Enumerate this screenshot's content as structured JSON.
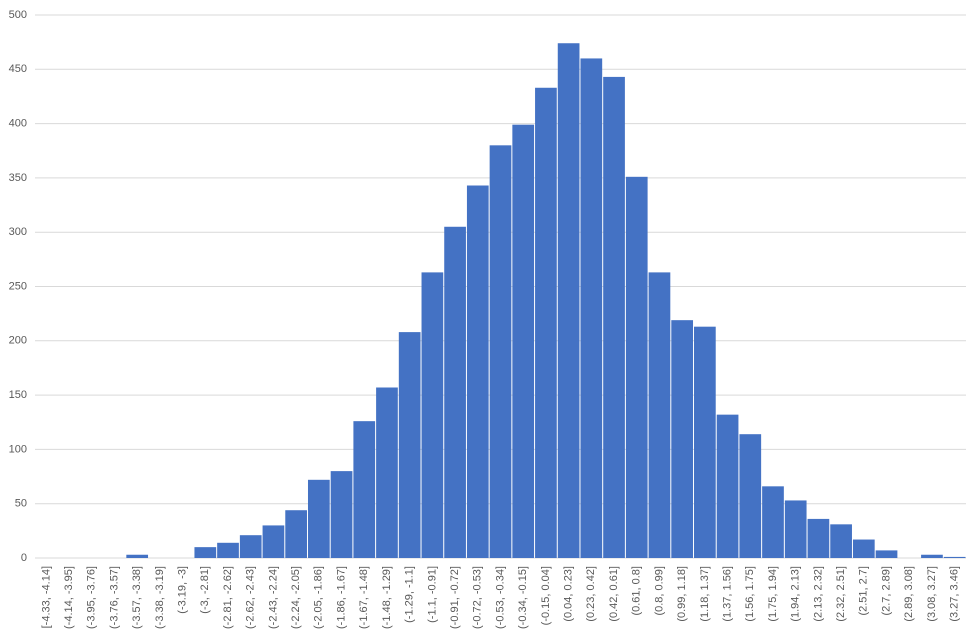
{
  "chart_data": {
    "type": "bar",
    "categories": [
      "[-4.33, -4.14]",
      "(-4.14, -3.95]",
      "(-3.95, -3.76]",
      "(-3.76, -3.57]",
      "(-3.57, -3.38]",
      "(-3.38, -3.19]",
      "(-3.19, -3]",
      "(-3, -2.81]",
      "(-2.81, -2.62]",
      "(-2.62, -2.43]",
      "(-2.43, -2.24]",
      "(-2.24, -2.05]",
      "(-2.05, -1.86]",
      "(-1.86, -1.67]",
      "(-1.67, -1.48]",
      "(-1.48, -1.29]",
      "(-1.29, -1.1]",
      "(-1.1, -0.91]",
      "(-0.91, -0.72]",
      "(-0.72, -0.53]",
      "(-0.53, -0.34]",
      "(-0.34, -0.15]",
      "(-0.15, 0.04]",
      "(0.04, 0.23]",
      "(0.23, 0.42]",
      "(0.42, 0.61]",
      "(0.61, 0.8]",
      "(0.8, 0.99]",
      "(0.99, 1.18]",
      "(1.18, 1.37]",
      "(1.37, 1.56]",
      "(1.56, 1.75]",
      "(1.75, 1.94]",
      "(1.94, 2.13]",
      "(2.13, 2.32]",
      "(2.32, 2.51]",
      "(2.51, 2.7]",
      "(2.7, 2.89]",
      "(2.89, 3.08]",
      "(3.08, 3.27]",
      "(3.27, 3.46]"
    ],
    "values": [
      0,
      0,
      0,
      0,
      3,
      0,
      0,
      10,
      14,
      21,
      30,
      44,
      72,
      80,
      126,
      157,
      208,
      263,
      305,
      343,
      380,
      399,
      433,
      474,
      460,
      443,
      351,
      263,
      219,
      213,
      132,
      114,
      66,
      53,
      36,
      31,
      17,
      7,
      0,
      3,
      1
    ],
    "color": "#4472c4",
    "ylim": [
      0,
      500
    ],
    "yticks": [
      0,
      50,
      100,
      150,
      200,
      250,
      300,
      350,
      400,
      450,
      500
    ],
    "grid": true
  }
}
